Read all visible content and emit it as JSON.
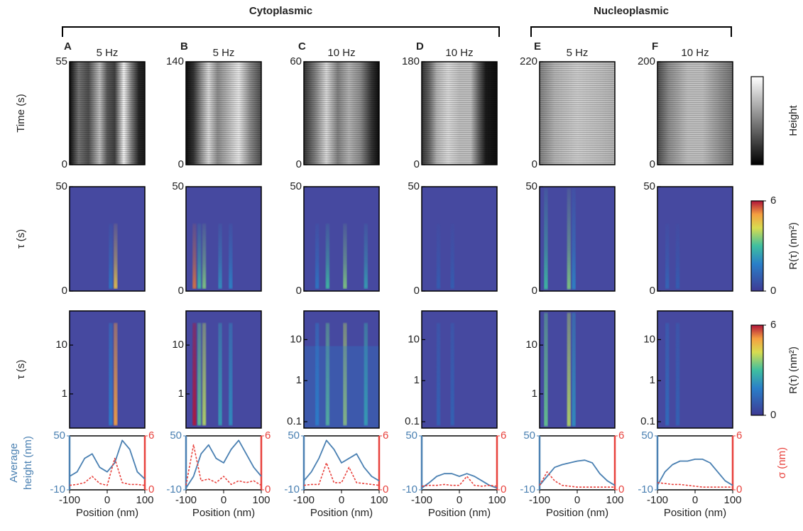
{
  "groups": [
    {
      "label": "Cytoplasmic"
    },
    {
      "label": "Nucleoplasmic"
    }
  ],
  "colorbars": [
    {
      "label": "Height"
    },
    {
      "label": "R(τ) (nm²)",
      "ylim": [
        0,
        6
      ],
      "ticks": [
        0,
        6
      ]
    },
    {
      "label": "R(τ) (nm²)",
      "ylim": [
        0,
        6
      ],
      "ticks": [
        0,
        6
      ]
    }
  ],
  "chart_data": [
    {
      "type": "heatmap",
      "title": "A",
      "subtitle": "5 Hz",
      "ylabel": "Time (s)",
      "ylim": [
        0,
        55
      ],
      "yticks": [
        0,
        55
      ]
    },
    {
      "type": "heatmap",
      "ylabel": "τ (s)",
      "ylim": [
        0,
        50
      ],
      "yticks": [
        0,
        50
      ]
    },
    {
      "type": "heatmap",
      "ylabel": "τ (s)",
      "log_scale": true,
      "ylim": [
        0.2,
        50
      ],
      "yticks": [
        1,
        10
      ]
    },
    {
      "type": "line",
      "ylabel": [
        "Average",
        "height (nm)"
      ],
      "xlabel": "Position (nm)",
      "x": [
        -100,
        -80,
        -60,
        -40,
        -20,
        0,
        20,
        40,
        60,
        80,
        100
      ],
      "xlim": [
        -100,
        100
      ],
      "xticks": [
        -100,
        0,
        100
      ],
      "ylim": [
        -10,
        50
      ],
      "yticks": [
        -10,
        50
      ],
      "y2lim": [
        0,
        6
      ],
      "y2ticks": [
        0,
        6
      ],
      "series": [
        {
          "color": "#4a80b2",
          "values": [
            5,
            10,
            25,
            30,
            15,
            10,
            20,
            45,
            35,
            10,
            2
          ]
        },
        {
          "color": "#e8413c",
          "axis": "y2",
          "values": [
            0.5,
            0.6,
            0.8,
            1.5,
            0.7,
            0.5,
            3.5,
            0.8,
            0.6,
            0.6,
            0.5
          ]
        }
      ]
    },
    {
      "type": "heatmap",
      "title": "B",
      "subtitle": "5 Hz",
      "ylim": [
        0,
        140
      ],
      "yticks": [
        0,
        140
      ]
    },
    {
      "type": "heatmap",
      "ylim": [
        0,
        50
      ],
      "yticks": [
        0,
        50
      ]
    },
    {
      "type": "heatmap",
      "log_scale": true,
      "ylim": [
        0.2,
        50
      ],
      "yticks": [
        1,
        10
      ]
    },
    {
      "type": "line",
      "xlabel": "Position (nm)",
      "x": [
        -100,
        -80,
        -60,
        -40,
        -20,
        0,
        20,
        40,
        60,
        80,
        100
      ],
      "xlim": [
        -100,
        100
      ],
      "xticks": [
        -100,
        0,
        100
      ],
      "ylim": [
        -10,
        50
      ],
      "yticks": [
        -10,
        50
      ],
      "y2lim": [
        0,
        6
      ],
      "y2ticks": [
        0,
        6
      ],
      "series": [
        {
          "color": "#4a80b2",
          "values": [
            -8,
            5,
            30,
            40,
            25,
            20,
            35,
            45,
            30,
            15,
            5
          ]
        },
        {
          "color": "#e8413c",
          "axis": "y2",
          "values": [
            0.5,
            5,
            1,
            1.2,
            0.8,
            1.5,
            0.6,
            1,
            0.8,
            1,
            0.5
          ]
        }
      ]
    },
    {
      "type": "heatmap",
      "title": "C",
      "subtitle": "10 Hz",
      "ylim": [
        0,
        60
      ],
      "yticks": [
        0,
        60
      ]
    },
    {
      "type": "heatmap",
      "ylim": [
        0,
        50
      ],
      "yticks": [
        0,
        50
      ]
    },
    {
      "type": "heatmap",
      "log_scale": true,
      "ylim": [
        0.07,
        50
      ],
      "yticks": [
        0.1,
        1,
        10
      ]
    },
    {
      "type": "line",
      "xlabel": "Position (nm)",
      "x": [
        -100,
        -80,
        -60,
        -40,
        -20,
        0,
        20,
        40,
        60,
        80,
        100
      ],
      "xlim": [
        -100,
        100
      ],
      "xticks": [
        -100,
        0,
        100
      ],
      "ylim": [
        -10,
        50
      ],
      "yticks": [
        -10,
        50
      ],
      "y2lim": [
        0,
        6
      ],
      "y2ticks": [
        0,
        6
      ],
      "series": [
        {
          "color": "#4a80b2",
          "values": [
            0,
            10,
            25,
            45,
            35,
            20,
            25,
            30,
            15,
            5,
            0
          ]
        },
        {
          "color": "#e8413c",
          "axis": "y2",
          "values": [
            0.5,
            0.6,
            0.6,
            3,
            0.8,
            0.8,
            2.5,
            0.8,
            0.7,
            0.6,
            0.5
          ]
        }
      ]
    },
    {
      "type": "heatmap",
      "title": "D",
      "subtitle": "10 Hz",
      "ylim": [
        0,
        180
      ],
      "yticks": [
        0,
        180
      ]
    },
    {
      "type": "heatmap",
      "ylim": [
        0,
        50
      ],
      "yticks": [
        0,
        50
      ]
    },
    {
      "type": "heatmap",
      "log_scale": true,
      "ylim": [
        0.07,
        50
      ],
      "yticks": [
        0.1,
        1,
        10
      ]
    },
    {
      "type": "line",
      "xlabel": "Position (nm)",
      "x": [
        -100,
        -80,
        -60,
        -40,
        -20,
        0,
        20,
        40,
        60,
        80,
        100
      ],
      "xlim": [
        -100,
        100
      ],
      "xticks": [
        -100,
        0,
        100
      ],
      "ylim": [
        -10,
        50
      ],
      "yticks": [
        -10,
        50
      ],
      "y2lim": [
        0,
        6
      ],
      "y2ticks": [
        0,
        6
      ],
      "series": [
        {
          "color": "#4a80b2",
          "values": [
            -8,
            -2,
            5,
            8,
            8,
            5,
            8,
            5,
            0,
            -5,
            -8
          ]
        },
        {
          "color": "#e8413c",
          "axis": "y2",
          "values": [
            0.4,
            0.5,
            0.5,
            0.6,
            0.5,
            0.5,
            1.5,
            0.5,
            0.4,
            0.5,
            0.4
          ]
        }
      ]
    },
    {
      "type": "heatmap",
      "title": "E",
      "subtitle": "5 Hz",
      "ylim": [
        0,
        220
      ],
      "yticks": [
        0,
        220
      ]
    },
    {
      "type": "heatmap",
      "ylim": [
        0,
        50
      ],
      "yticks": [
        0,
        50
      ]
    },
    {
      "type": "heatmap",
      "log_scale": true,
      "ylim": [
        0.2,
        50
      ],
      "yticks": [
        1,
        10
      ]
    },
    {
      "type": "line",
      "xlabel": "Position (nm)",
      "x": [
        -100,
        -80,
        -60,
        -40,
        -20,
        0,
        20,
        40,
        60,
        80,
        100
      ],
      "xlim": [
        -100,
        100
      ],
      "xticks": [
        -100,
        0,
        100
      ],
      "ylim": [
        -10,
        50
      ],
      "yticks": [
        -10,
        50
      ],
      "y2lim": [
        0,
        6
      ],
      "y2ticks": [
        0,
        6
      ],
      "series": [
        {
          "color": "#4a80b2",
          "values": [
            -5,
            5,
            15,
            18,
            20,
            22,
            23,
            20,
            8,
            0,
            -5
          ]
        },
        {
          "color": "#e8413c",
          "axis": "y2",
          "values": [
            0.5,
            2,
            1,
            0.5,
            0.4,
            0.3,
            0.3,
            0.3,
            0.3,
            0.3,
            0.3
          ]
        }
      ]
    },
    {
      "type": "heatmap",
      "title": "F",
      "subtitle": "10 Hz",
      "ylim": [
        0,
        200
      ],
      "yticks": [
        0,
        200
      ]
    },
    {
      "type": "heatmap",
      "ylim": [
        0,
        50
      ],
      "yticks": [
        0,
        50
      ]
    },
    {
      "type": "heatmap",
      "log_scale": true,
      "ylim": [
        0.07,
        50
      ],
      "yticks": [
        0.1,
        1,
        10
      ]
    },
    {
      "type": "line",
      "xlabel": "Position (nm)",
      "y2label": "σ (nm)",
      "x": [
        -100,
        -80,
        -60,
        -40,
        -20,
        0,
        20,
        40,
        60,
        80,
        100
      ],
      "xlim": [
        -100,
        100
      ],
      "xticks": [
        -100,
        0,
        100
      ],
      "ylim": [
        -10,
        50
      ],
      "yticks": [
        -10,
        50
      ],
      "y2lim": [
        0,
        6
      ],
      "y2ticks": [
        0,
        6
      ],
      "series": [
        {
          "color": "#4a80b2",
          "values": [
            -5,
            10,
            18,
            22,
            22,
            24,
            24,
            20,
            10,
            0,
            -5
          ]
        },
        {
          "color": "#e8413c",
          "axis": "y2",
          "values": [
            0.8,
            0.7,
            0.6,
            0.6,
            0.5,
            0.4,
            0.3,
            0.3,
            0.3,
            0.3,
            0.3
          ]
        }
      ]
    }
  ]
}
